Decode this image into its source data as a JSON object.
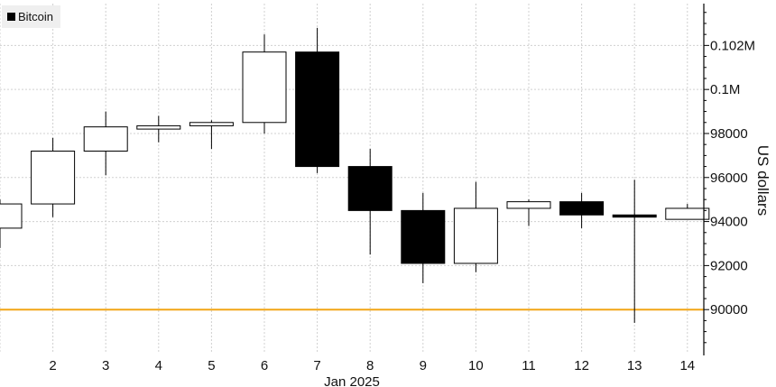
{
  "chart_data": {
    "type": "candlestick",
    "legend": [
      {
        "name": "Bitcoin",
        "color": "#000000"
      }
    ],
    "legend_placement": "top-left",
    "ylabel": "US dollars",
    "xlabel": "Jan 2025",
    "ylim": [
      88000,
      103900
    ],
    "y_ticks": [
      {
        "value": 90000,
        "label": "90000"
      },
      {
        "value": 92000,
        "label": "92000"
      },
      {
        "value": 94000,
        "label": "94000"
      },
      {
        "value": 96000,
        "label": "96000"
      },
      {
        "value": 98000,
        "label": "98000"
      },
      {
        "value": 100000,
        "label": "0.1M"
      },
      {
        "value": 102000,
        "label": "0.102M"
      }
    ],
    "reference_line": {
      "value": 90000,
      "color": "#f2a516"
    },
    "candles": [
      {
        "day": 1,
        "label": "",
        "open": 93700,
        "close": 94800,
        "high": 95000,
        "low": 92800
      },
      {
        "day": 2,
        "label": "2",
        "open": 94800,
        "close": 97200,
        "high": 97800,
        "low": 94200
      },
      {
        "day": 3,
        "label": "3",
        "open": 97200,
        "close": 98300,
        "high": 99000,
        "low": 96100
      },
      {
        "day": 4,
        "label": "4",
        "open": 98200,
        "close": 98350,
        "high": 98800,
        "low": 97600
      },
      {
        "day": 5,
        "label": "5",
        "open": 98350,
        "close": 98500,
        "high": 98600,
        "low": 97300
      },
      {
        "day": 6,
        "label": "6",
        "open": 98500,
        "close": 101700,
        "high": 102500,
        "low": 98000
      },
      {
        "day": 7,
        "label": "7",
        "open": 101700,
        "close": 96500,
        "high": 102800,
        "low": 96200
      },
      {
        "day": 8,
        "label": "8",
        "open": 96500,
        "close": 94500,
        "high": 97300,
        "low": 92500
      },
      {
        "day": 9,
        "label": "9",
        "open": 94500,
        "close": 92100,
        "high": 95300,
        "low": 91200
      },
      {
        "day": 10,
        "label": "10",
        "open": 92100,
        "close": 94600,
        "high": 95800,
        "low": 91700
      },
      {
        "day": 11,
        "label": "11",
        "open": 94600,
        "close": 94900,
        "high": 95000,
        "low": 93800
      },
      {
        "day": 12,
        "label": "12",
        "open": 94900,
        "close": 94300,
        "high": 95300,
        "low": 93700
      },
      {
        "day": 13,
        "label": "13",
        "open": 94300,
        "close": 94200,
        "high": 95900,
        "low": 89400
      },
      {
        "day": 14,
        "label": "14",
        "open": 94100,
        "close": 94600,
        "high": 94800,
        "low": 94100
      }
    ],
    "grid": true,
    "colors": {
      "up_fill": "#ffffff",
      "down_fill": "#000000",
      "outline": "#000000",
      "grid": "#d0d0d0"
    }
  }
}
